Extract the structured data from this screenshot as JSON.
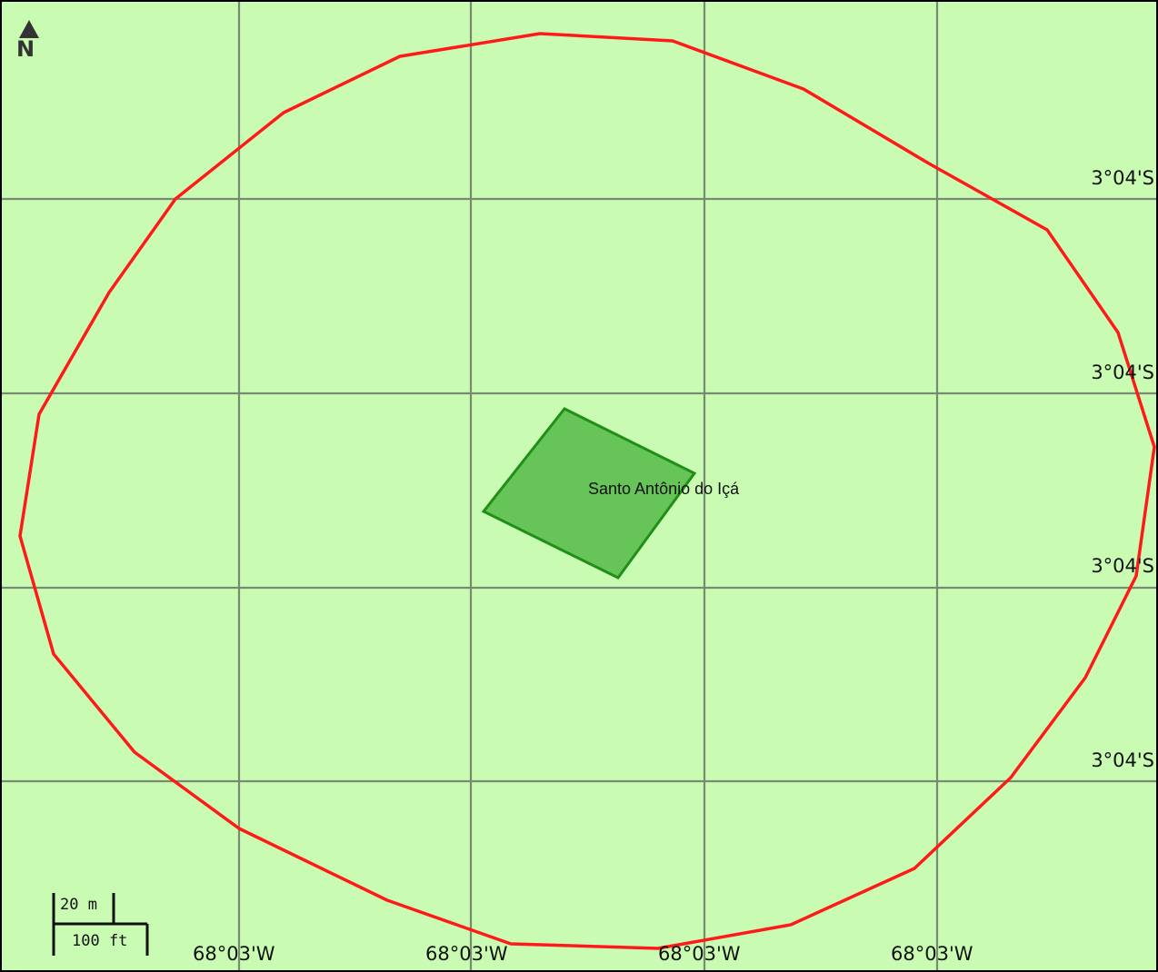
{
  "map": {
    "background_color": "#c9fcb2",
    "grid_color": "#7a8a72",
    "boundary_color": "#ff1a1a",
    "feature_fill": "#66c458",
    "feature_stroke": "#1f8f17",
    "north_label": "N",
    "place_label": "Santo Antônio do Içá",
    "lat_labels": [
      "3°04'S",
      "3°04'S",
      "3°04'S",
      "3°04'S"
    ],
    "lon_labels": [
      "68°03'W",
      "68°03'W",
      "68°03'W",
      "68°03'W"
    ],
    "scale": {
      "metric": "20 m",
      "imperial": "100 ft"
    }
  }
}
